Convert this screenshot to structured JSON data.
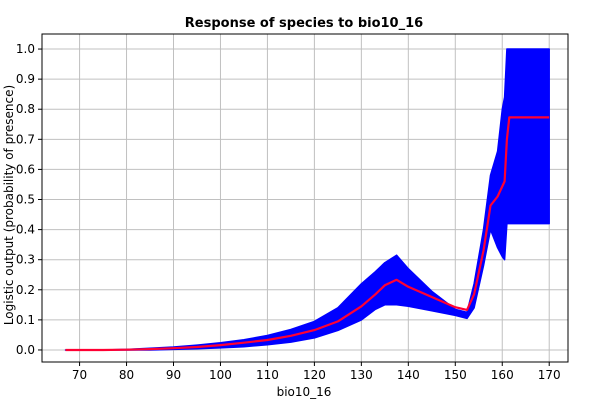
{
  "chart_data": {
    "type": "area",
    "title": "Response of species to bio10_16",
    "xlabel": "bio10_16",
    "ylabel": "Logistic output (probability of presence)",
    "xlim": [
      62,
      174
    ],
    "ylim": [
      -0.04,
      1.05
    ],
    "x_ticks": [
      70,
      80,
      90,
      100,
      110,
      120,
      130,
      140,
      150,
      160,
      170
    ],
    "y_ticks": [
      0.0,
      0.1,
      0.2,
      0.3,
      0.4,
      0.5,
      0.6,
      0.7,
      0.8,
      0.9,
      1.0
    ],
    "grid": true,
    "series": [
      {
        "kind": "band",
        "color": "#0000ff",
        "x": [
          67,
          70,
          75,
          80,
          85,
          90,
          95,
          100,
          105,
          110,
          115,
          120,
          125,
          130,
          133,
          135,
          137.5,
          140,
          145,
          150,
          152.5,
          154,
          156,
          157.5,
          159,
          160,
          160.5,
          161,
          170
        ],
        "upper": [
          0.0,
          0.0,
          0.0,
          0.002,
          0.006,
          0.01,
          0.016,
          0.024,
          0.034,
          0.048,
          0.068,
          0.095,
          0.14,
          0.22,
          0.26,
          0.29,
          0.315,
          0.27,
          0.195,
          0.135,
          0.125,
          0.22,
          0.4,
          0.58,
          0.66,
          0.8,
          0.84,
          1.0,
          1.0
        ],
        "lower": [
          0.0,
          0.0,
          0.0,
          0.0,
          0.0,
          0.002,
          0.004,
          0.007,
          0.011,
          0.017,
          0.026,
          0.04,
          0.065,
          0.1,
          0.135,
          0.15,
          0.15,
          0.145,
          0.13,
          0.115,
          0.105,
          0.14,
          0.28,
          0.4,
          0.34,
          0.31,
          0.3,
          0.42,
          0.42
        ]
      },
      {
        "kind": "line",
        "color": "#ff0033",
        "x": [
          67,
          70,
          75,
          80,
          85,
          90,
          95,
          100,
          105,
          110,
          115,
          120,
          125,
          130,
          133,
          135,
          137.5,
          140,
          145,
          150,
          152.5,
          154,
          156,
          157.5,
          159,
          160.5,
          161,
          161.5,
          170
        ],
        "y": [
          0.0,
          0.0,
          0.0,
          0.001,
          0.003,
          0.006,
          0.01,
          0.016,
          0.024,
          0.033,
          0.047,
          0.066,
          0.095,
          0.145,
          0.185,
          0.215,
          0.233,
          0.21,
          0.176,
          0.142,
          0.133,
          0.185,
          0.33,
          0.48,
          0.51,
          0.56,
          0.7,
          0.773,
          0.773
        ]
      }
    ]
  }
}
